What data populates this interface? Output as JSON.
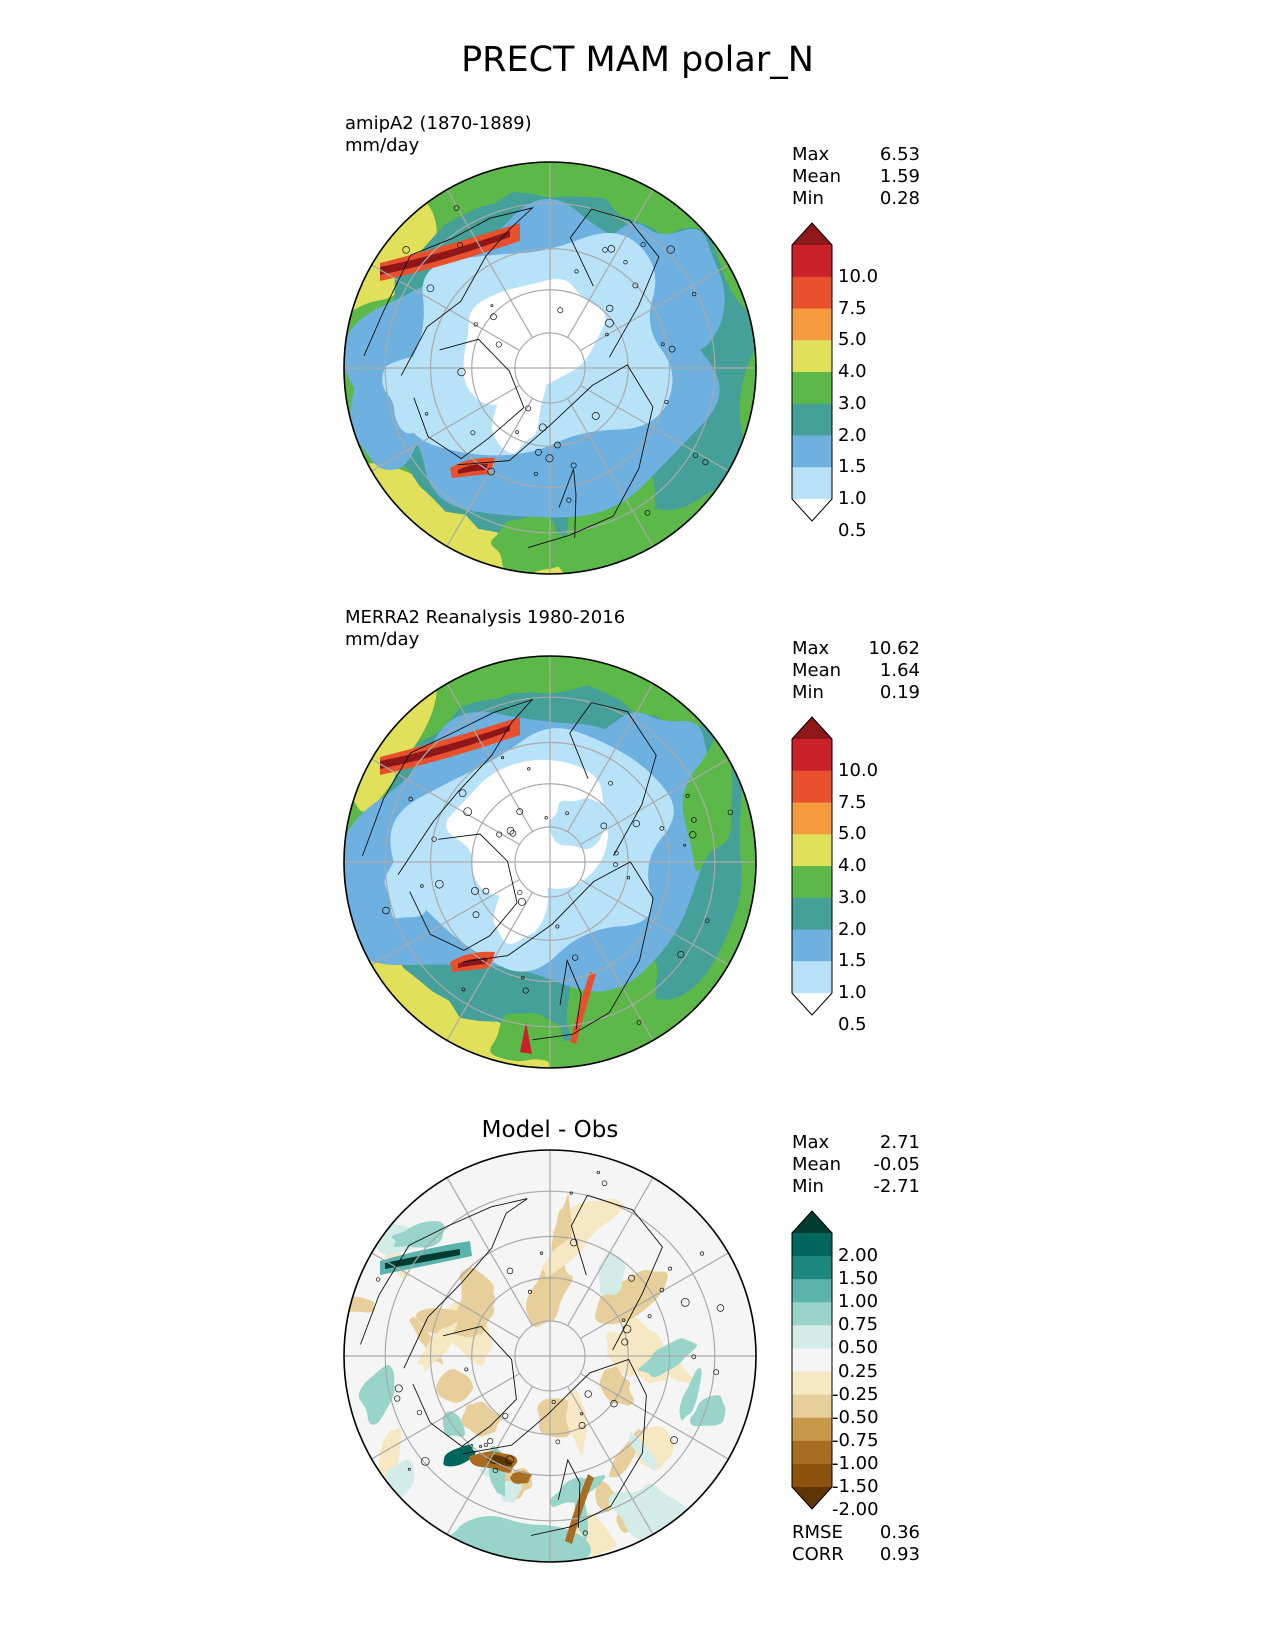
{
  "title": "PRECT MAM polar_N",
  "chart_data": [
    {
      "type": "heatmap",
      "projection": "north-polar-stereographic",
      "title": "amipA2 (1870-1889)",
      "units": "mm/day",
      "stats": [
        {
          "label": "Max",
          "value": "6.53"
        },
        {
          "label": "Mean",
          "value": "1.59"
        },
        {
          "label": "Min",
          "value": "0.28"
        }
      ],
      "colorbar": {
        "ticks": [
          "10.0",
          "7.5",
          "5.0",
          "4.0",
          "3.0",
          "2.0",
          "1.5",
          "1.0",
          "0.5"
        ],
        "colors_top_to_bottom": [
          "#8e1719",
          "#c9202a",
          "#e8502d",
          "#f59a3e",
          "#e0e05a",
          "#5cb849",
          "#45a09a",
          "#6eb0e0",
          "#b8e2f8",
          "#ffffff"
        ]
      }
    },
    {
      "type": "heatmap",
      "projection": "north-polar-stereographic",
      "title": "MERRA2 Reanalysis 1980-2016",
      "units": "mm/day",
      "stats": [
        {
          "label": "Max",
          "value": "10.62"
        },
        {
          "label": "Mean",
          "value": "1.64"
        },
        {
          "label": "Min",
          "value": "0.19"
        }
      ],
      "colorbar": {
        "ticks": [
          "10.0",
          "7.5",
          "5.0",
          "4.0",
          "3.0",
          "2.0",
          "1.5",
          "1.0",
          "0.5"
        ],
        "colors_top_to_bottom": [
          "#8e1719",
          "#c9202a",
          "#e8502d",
          "#f59a3e",
          "#e0e05a",
          "#5cb849",
          "#45a09a",
          "#6eb0e0",
          "#b8e2f8",
          "#ffffff"
        ]
      }
    },
    {
      "type": "heatmap",
      "projection": "north-polar-stereographic",
      "title": "Model - Obs",
      "stats": [
        {
          "label": "Max",
          "value": "2.71"
        },
        {
          "label": "Mean",
          "value": "-0.05"
        },
        {
          "label": "Min",
          "value": "-2.71"
        }
      ],
      "metrics": [
        {
          "label": "RMSE",
          "value": "0.36"
        },
        {
          "label": "CORR",
          "value": "0.93"
        }
      ],
      "colorbar": {
        "ticks": [
          "2.00",
          "1.50",
          "1.00",
          "0.75",
          "0.50",
          "0.25",
          "-0.25",
          "-0.50",
          "-0.75",
          "-1.00",
          "-1.50",
          "-2.00"
        ],
        "colors_top_to_bottom": [
          "#003c30",
          "#01665e",
          "#1e877d",
          "#5ab4ac",
          "#98d4ca",
          "#d4ece8",
          "#f5f5f5",
          "#f6e8c3",
          "#e6cf9a",
          "#c9994b",
          "#a86c22",
          "#8c510a",
          "#5e3606"
        ]
      }
    }
  ]
}
